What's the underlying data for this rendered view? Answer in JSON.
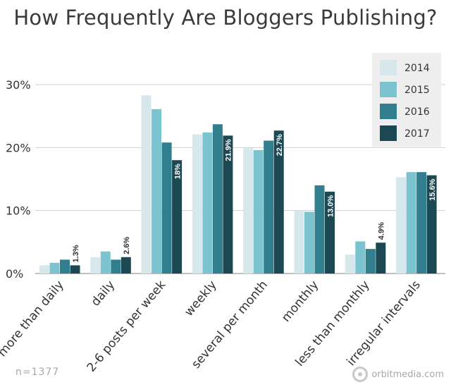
{
  "chart_data": {
    "type": "bar",
    "title": "How Frequently Are Bloggers Publishing?",
    "categories": [
      "more than daily",
      "daily",
      "2-6 posts per week",
      "weekly",
      "several per month",
      "monthly",
      "less than monthly",
      "irregular intervals"
    ],
    "series": [
      {
        "name": "2014",
        "color": "#d6e8ec",
        "values": [
          1.3,
          2.6,
          28.3,
          22.1,
          19.9,
          10.0,
          3.0,
          15.3
        ]
      },
      {
        "name": "2015",
        "color": "#7bc3cf",
        "values": [
          1.7,
          3.5,
          26.1,
          22.4,
          19.6,
          9.8,
          5.1,
          16.1
        ]
      },
      {
        "name": "2016",
        "color": "#317f8e",
        "values": [
          2.2,
          2.2,
          20.8,
          23.7,
          21.1,
          14.0,
          3.9,
          16.1
        ]
      },
      {
        "name": "2017",
        "color": "#1c4853",
        "values": [
          1.3,
          2.6,
          18.0,
          21.9,
          22.7,
          13.0,
          4.9,
          15.6
        ]
      }
    ],
    "value_labels": {
      "series": "2017",
      "labels": [
        "1.3%",
        "2.6%",
        "18%",
        "21.9%",
        "22.7%",
        "13.0%",
        "4.9%",
        "15.6%"
      ],
      "placement": [
        "above",
        "above",
        "inside",
        "inside",
        "inside",
        "inside",
        "above",
        "inside"
      ]
    },
    "y_ticks": [
      "0%",
      "10%",
      "20%",
      "30%"
    ],
    "y_tick_values": [
      0,
      10,
      20,
      30
    ],
    "ylim": [
      0,
      30
    ],
    "grid": true,
    "legend_position": "top-right"
  },
  "footnote": "n=1377",
  "brand": "orbitmedia.com"
}
